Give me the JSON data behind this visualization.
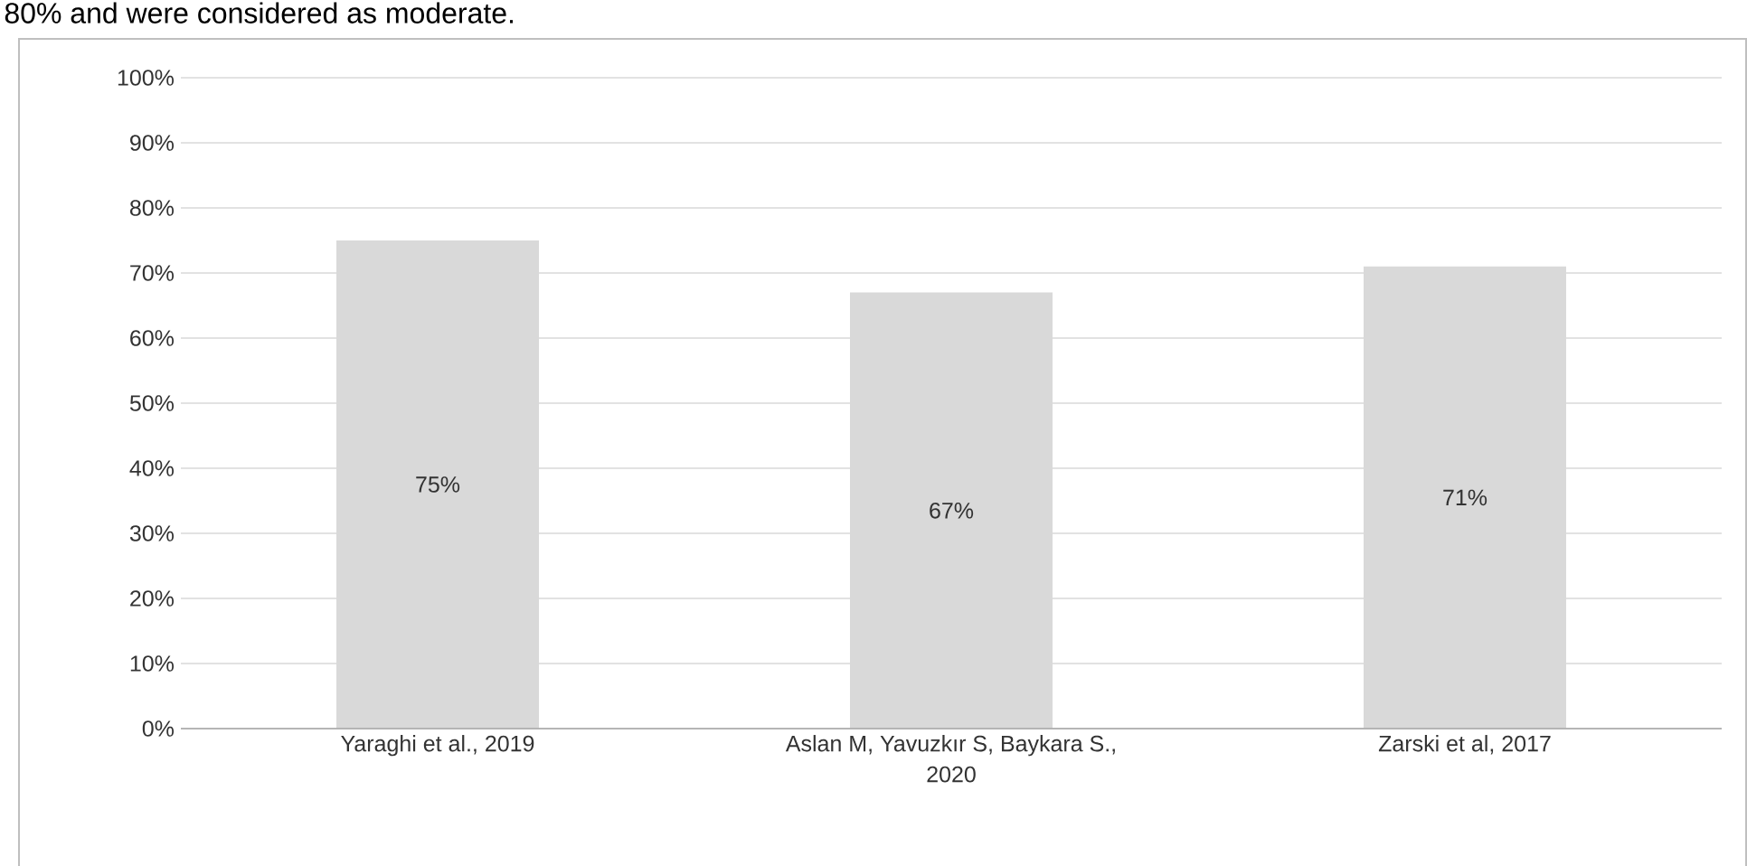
{
  "chart_data": {
    "type": "bar",
    "annotations": [
      "80% and were considered as moderate."
    ],
    "categories": [
      "Yaraghi et al., 2019",
      "Aslan M, Yavuzkır S, Baykara S., 2020",
      "Zarski et al, 2017"
    ],
    "values": [
      75,
      67,
      71
    ],
    "value_labels": [
      "75%",
      "67%",
      "71%"
    ],
    "color": "#d9d9d9",
    "ylim": [
      0,
      100
    ],
    "yticks": [
      {
        "value": 0,
        "label": "0%"
      },
      {
        "value": 10,
        "label": "10%"
      },
      {
        "value": 20,
        "label": "20%"
      },
      {
        "value": 30,
        "label": "30%"
      },
      {
        "value": 40,
        "label": "40%"
      },
      {
        "value": 50,
        "label": "50%"
      },
      {
        "value": 60,
        "label": "60%"
      },
      {
        "value": 70,
        "label": "70%"
      },
      {
        "value": 80,
        "label": "80%"
      },
      {
        "value": 90,
        "label": "90%"
      },
      {
        "value": 100,
        "label": "100%"
      }
    ],
    "grid": "y"
  }
}
